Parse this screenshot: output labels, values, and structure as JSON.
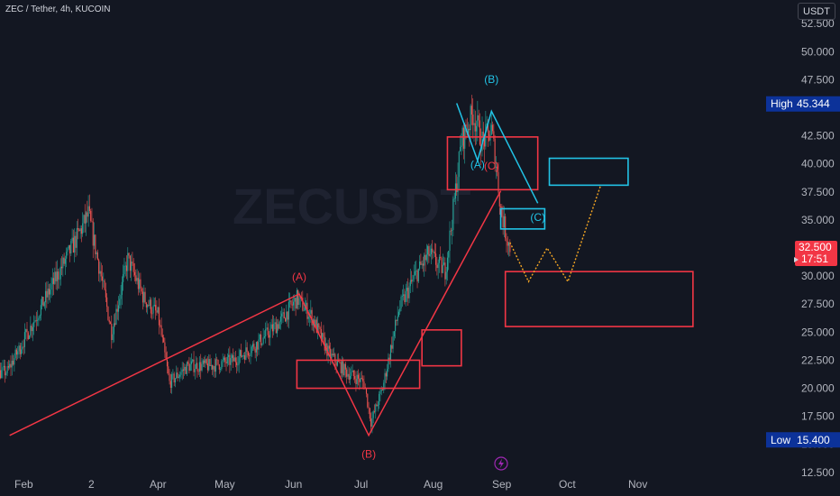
{
  "header": {
    "title": "ZEC / Tether, 4h, KUCOIN",
    "currency": "USDT"
  },
  "watermark": "ZECUSDT",
  "colors": {
    "background": "#131722",
    "up": "#26a69a",
    "down": "#ef5350",
    "wave_red": "#f23645",
    "wave_cyan": "#22c3e6",
    "projection": "#f5a623",
    "badge_blue": "#0c3299"
  },
  "badges": {
    "high": {
      "label": "High",
      "value": "45.344"
    },
    "low": {
      "label": "Low",
      "value": "15.400"
    },
    "price": {
      "value": "32.500",
      "countdown": "17:51"
    }
  },
  "chart_data": {
    "type": "candlestick",
    "title": "ZEC / Tether, 4h, KUCOIN",
    "y_axis_ticks": [
      "12.500",
      "15.000",
      "17.500",
      "20.000",
      "22.500",
      "25.000",
      "27.500",
      "30.000",
      "32.500",
      "35.000",
      "37.500",
      "40.000",
      "42.500",
      "45.000",
      "47.500",
      "50.000",
      "52.500"
    ],
    "ylim": [
      11.2,
      53.0
    ],
    "x_tick_labels": [
      "Feb",
      "2",
      "Apr",
      "May",
      "Jun",
      "Jul",
      "Aug",
      "Sep",
      "Oct",
      "Nov"
    ],
    "price_path": [
      [
        "Jan 01",
        23.0
      ],
      [
        "Jan 15",
        21.0
      ],
      [
        "Jan 27",
        21.5
      ],
      [
        "Feb 10",
        27.0
      ],
      [
        "Feb 25",
        33.0
      ],
      [
        "Mar 03",
        35.5
      ],
      [
        "Mar 08",
        30.5
      ],
      [
        "Mar 13",
        25.0
      ],
      [
        "Mar 20",
        31.5
      ],
      [
        "Mar 27",
        28.0
      ],
      [
        "Apr 02",
        26.5
      ],
      [
        "Apr 07",
        20.5
      ],
      [
        "Apr 15",
        22.0
      ],
      [
        "Apr 25",
        22.0
      ],
      [
        "May 05",
        22.5
      ],
      [
        "May 15",
        24.0
      ],
      [
        "May 25",
        26.0
      ],
      [
        "Jun 01",
        28.0
      ],
      [
        "Jun 07",
        26.5
      ],
      [
        "Jun 15",
        23.0
      ],
      [
        "Jun 22",
        21.5
      ],
      [
        "Jun 30",
        20.5
      ],
      [
        "Jul 03",
        17.0
      ],
      [
        "Jul 08",
        20.0
      ],
      [
        "Jul 15",
        27.0
      ],
      [
        "Jul 22",
        30.0
      ],
      [
        "Jul 28",
        32.0
      ],
      [
        "Aug 01",
        31.0
      ],
      [
        "Aug 04",
        30.5
      ],
      [
        "Aug 07",
        35.0
      ],
      [
        "Aug 11",
        42.0
      ],
      [
        "Aug 16",
        44.5
      ],
      [
        "Aug 20",
        42.0
      ],
      [
        "Aug 24",
        43.0
      ],
      [
        "Aug 26",
        40.0
      ],
      [
        "Aug 28",
        36.0
      ],
      [
        "Aug 30",
        34.0
      ],
      [
        "Sep 01",
        32.5
      ]
    ],
    "wave_lines": [
      {
        "name": "red-impulse",
        "color": "#f23645",
        "points": [
          [
            "Jan 28",
            15.8
          ],
          [
            "Jun 02",
            28.4
          ],
          [
            "Jul 02",
            15.8
          ],
          [
            "Aug 28",
            37.6
          ]
        ]
      },
      {
        "name": "cyan-abc",
        "color": "#22c3e6",
        "points": [
          [
            "Aug 09",
            45.4
          ],
          [
            "Aug 18",
            40.3
          ],
          [
            "Aug 24",
            44.7
          ],
          [
            "Sep 13",
            36.5
          ]
        ]
      },
      {
        "name": "projection",
        "color": "#f5a623",
        "dashed": true,
        "points": [
          [
            "Sep 01",
            33.0
          ],
          [
            "Sep 09",
            29.5
          ],
          [
            "Sep 17",
            32.5
          ],
          [
            "Sep 26",
            29.5
          ],
          [
            "Oct 10",
            38.0
          ]
        ]
      }
    ],
    "zones": [
      {
        "color": "#f23645",
        "x": [
          "Jun 01",
          "Jul 24"
        ],
        "y": [
          20.0,
          22.5
        ]
      },
      {
        "color": "#f23645",
        "x": [
          "Jul 25",
          "Aug 11"
        ],
        "y": [
          22.0,
          25.2
        ]
      },
      {
        "color": "#f23645",
        "x": [
          "Aug 05",
          "Sep 13"
        ],
        "y": [
          37.7,
          42.4
        ]
      },
      {
        "color": "#22c3e6",
        "x": [
          "Aug 28",
          "Sep 16"
        ],
        "y": [
          34.2,
          36.0
        ]
      },
      {
        "color": "#22c3e6",
        "x": [
          "Sep 18",
          "Oct 22"
        ],
        "y": [
          38.1,
          40.5
        ]
      },
      {
        "color": "#f23645",
        "x": [
          "Aug 30",
          "Nov 19"
        ],
        "y": [
          25.5,
          30.4
        ]
      }
    ],
    "labels": [
      {
        "text": "(A)",
        "color": "#f23645",
        "at": [
          "Jun 02",
          29.6
        ]
      },
      {
        "text": "(B)",
        "color": "#f23645",
        "at": [
          "Jul 02",
          13.8
        ]
      },
      {
        "text": "(C)",
        "color": "#f23645",
        "at": [
          "Aug 24",
          39.5
        ]
      },
      {
        "text": "(A)",
        "color": "#22c3e6",
        "at": [
          "Aug 18",
          39.6
        ]
      },
      {
        "text": "(B)",
        "color": "#22c3e6",
        "at": [
          "Aug 24",
          47.2
        ]
      },
      {
        "text": "(C)",
        "color": "#22c3e6",
        "at": [
          "Sep 13",
          34.9
        ]
      }
    ]
  }
}
